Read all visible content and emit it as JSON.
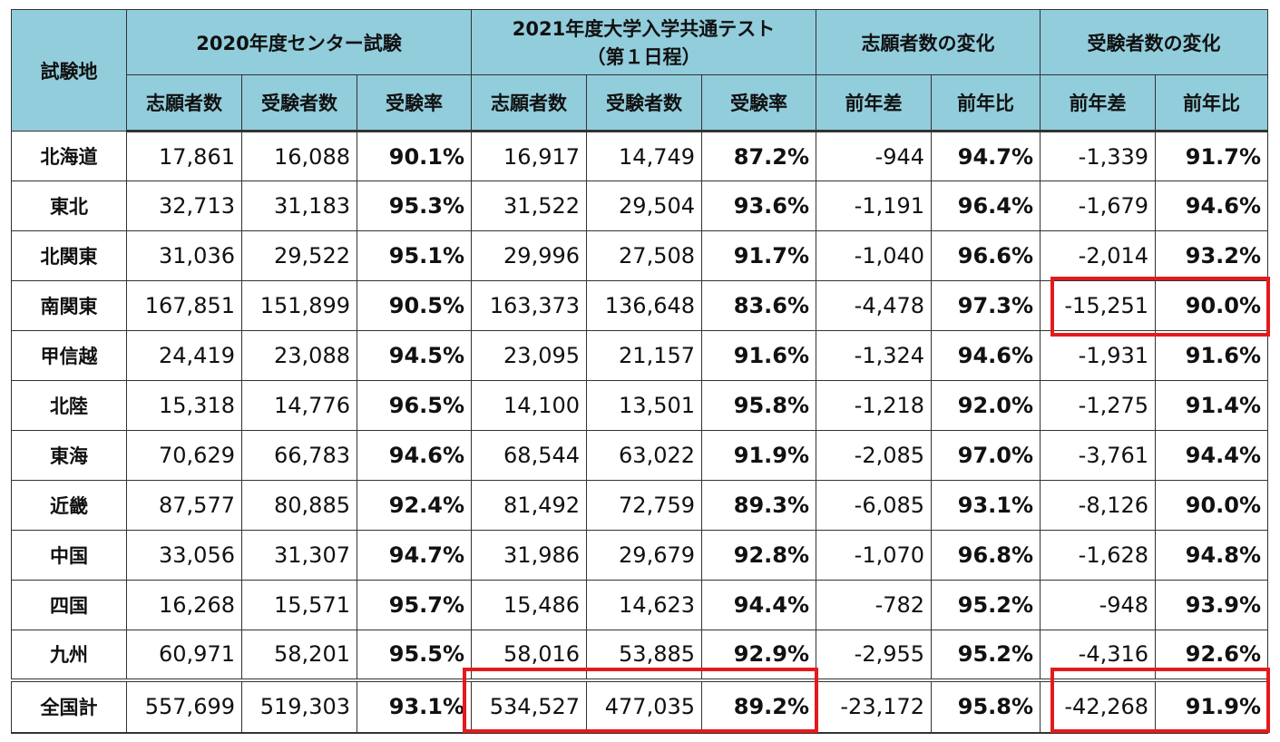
{
  "headers": {
    "location": "試験地",
    "group2020": "2020年度センター試験",
    "group2021_line1": "2021年度大学入学共通テスト",
    "group2021_line2": "（第１日程）",
    "group_applicants_change": "志願者数の変化",
    "group_examinees_change": "受験者数の変化",
    "applicants": "志願者数",
    "examinees": "受験者数",
    "rate": "受験率",
    "diff": "前年差",
    "ratio": "前年比"
  },
  "rows": [
    {
      "name": "北海道",
      "a20": "17,861",
      "e20": "16,088",
      "r20": "90.1%",
      "a21": "16,917",
      "e21": "14,749",
      "r21": "87.2%",
      "ad": "-944",
      "ar": "94.7%",
      "ed": "-1,339",
      "er": "91.7%"
    },
    {
      "name": "東北",
      "a20": "32,713",
      "e20": "31,183",
      "r20": "95.3%",
      "a21": "31,522",
      "e21": "29,504",
      "r21": "93.6%",
      "ad": "-1,191",
      "ar": "96.4%",
      "ed": "-1,679",
      "er": "94.6%"
    },
    {
      "name": "北関東",
      "a20": "31,036",
      "e20": "29,522",
      "r20": "95.1%",
      "a21": "29,996",
      "e21": "27,508",
      "r21": "91.7%",
      "ad": "-1,040",
      "ar": "96.6%",
      "ed": "-2,014",
      "er": "93.2%"
    },
    {
      "name": "南関東",
      "a20": "167,851",
      "e20": "151,899",
      "r20": "90.5%",
      "a21": "163,373",
      "e21": "136,648",
      "r21": "83.6%",
      "ad": "-4,478",
      "ar": "97.3%",
      "ed": "-15,251",
      "er": "90.0%"
    },
    {
      "name": "甲信越",
      "a20": "24,419",
      "e20": "23,088",
      "r20": "94.5%",
      "a21": "23,095",
      "e21": "21,157",
      "r21": "91.6%",
      "ad": "-1,324",
      "ar": "94.6%",
      "ed": "-1,931",
      "er": "91.6%"
    },
    {
      "name": "北陸",
      "a20": "15,318",
      "e20": "14,776",
      "r20": "96.5%",
      "a21": "14,100",
      "e21": "13,501",
      "r21": "95.8%",
      "ad": "-1,218",
      "ar": "92.0%",
      "ed": "-1,275",
      "er": "91.4%"
    },
    {
      "name": "東海",
      "a20": "70,629",
      "e20": "66,783",
      "r20": "94.6%",
      "a21": "68,544",
      "e21": "63,022",
      "r21": "91.9%",
      "ad": "-2,085",
      "ar": "97.0%",
      "ed": "-3,761",
      "er": "94.4%"
    },
    {
      "name": "近畿",
      "a20": "87,577",
      "e20": "80,885",
      "r20": "92.4%",
      "a21": "81,492",
      "e21": "72,759",
      "r21": "89.3%",
      "ad": "-6,085",
      "ar": "93.1%",
      "ed": "-8,126",
      "er": "90.0%"
    },
    {
      "name": "中国",
      "a20": "33,056",
      "e20": "31,307",
      "r20": "94.7%",
      "a21": "31,986",
      "e21": "29,679",
      "r21": "92.8%",
      "ad": "-1,070",
      "ar": "96.8%",
      "ed": "-1,628",
      "er": "94.8%"
    },
    {
      "name": "四国",
      "a20": "16,268",
      "e20": "15,571",
      "r20": "95.7%",
      "a21": "15,486",
      "e21": "14,623",
      "r21": "94.4%",
      "ad": "-782",
      "ar": "95.2%",
      "ed": "-948",
      "er": "93.9%"
    },
    {
      "name": "九州",
      "a20": "60,971",
      "e20": "58,201",
      "r20": "95.5%",
      "a21": "58,016",
      "e21": "53,885",
      "r21": "92.9%",
      "ad": "-2,955",
      "ar": "95.2%",
      "ed": "-4,316",
      "er": "92.6%"
    }
  ],
  "total": {
    "name": "全国計",
    "a20": "557,699",
    "e20": "519,303",
    "r20": "93.1%",
    "a21": "534,527",
    "e21": "477,035",
    "r21": "89.2%",
    "ad": "-23,172",
    "ar": "95.8%",
    "ed": "-42,268",
    "er": "91.9%"
  },
  "colors": {
    "header_bg": "#92cddc",
    "highlight": "#e31a1c",
    "border": "#333333"
  }
}
